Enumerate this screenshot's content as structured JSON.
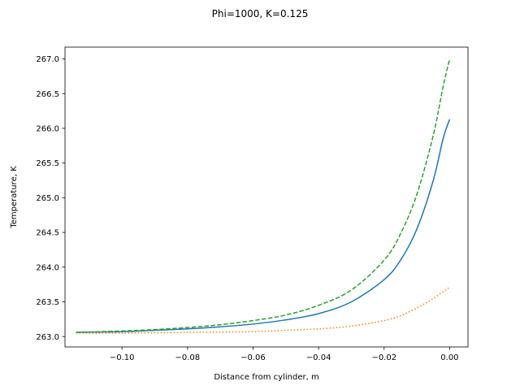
{
  "chart_data": {
    "type": "line",
    "title": "Phi=1000, K=0.125",
    "xlabel": "Distance from cylinder, m",
    "ylabel": "Temperature, K",
    "xlim": [
      -0.1174,
      0.0056
    ],
    "ylim": [
      262.85,
      267.17
    ],
    "xticks": [
      -0.1,
      -0.08,
      -0.06,
      -0.04,
      -0.02,
      0.0
    ],
    "xtick_labels": [
      "−0.10",
      "−0.08",
      "−0.06",
      "−0.04",
      "−0.02",
      "0.00"
    ],
    "yticks": [
      263.0,
      263.5,
      264.0,
      264.5,
      265.0,
      265.5,
      266.0,
      266.5,
      267.0
    ],
    "ytick_labels": [
      "263.0",
      "263.5",
      "264.0",
      "264.5",
      "265.0",
      "265.5",
      "266.0",
      "266.5",
      "267.0"
    ],
    "grid": false,
    "legend": "none",
    "series": [
      {
        "color": "#1f77b4",
        "style": "solid",
        "x": [
          -0.114,
          -0.1,
          -0.09,
          -0.08,
          -0.07,
          -0.06,
          -0.05,
          -0.04,
          -0.03,
          -0.02,
          -0.015,
          -0.01,
          -0.005,
          -0.002,
          0.0
        ],
        "y": [
          263.06,
          263.07,
          263.09,
          263.11,
          263.14,
          263.18,
          263.24,
          263.33,
          263.5,
          263.82,
          264.1,
          264.55,
          265.25,
          265.85,
          266.13
        ]
      },
      {
        "color": "#ff7f0e",
        "style": "dotted",
        "x": [
          -0.114,
          -0.1,
          -0.08,
          -0.06,
          -0.05,
          -0.04,
          -0.03,
          -0.02,
          -0.015,
          -0.01,
          -0.005,
          0.0
        ],
        "y": [
          263.05,
          263.05,
          263.06,
          263.07,
          263.09,
          263.11,
          263.15,
          263.23,
          263.3,
          263.41,
          263.55,
          263.71
        ]
      },
      {
        "color": "#2ca02c",
        "style": "dashed",
        "x": [
          -0.114,
          -0.1,
          -0.09,
          -0.08,
          -0.07,
          -0.06,
          -0.05,
          -0.04,
          -0.03,
          -0.02,
          -0.015,
          -0.01,
          -0.005,
          -0.002,
          0.0
        ],
        "y": [
          263.06,
          263.08,
          263.1,
          263.13,
          263.17,
          263.23,
          263.31,
          263.45,
          263.67,
          264.1,
          264.48,
          265.05,
          265.9,
          266.6,
          267.0
        ]
      }
    ]
  }
}
